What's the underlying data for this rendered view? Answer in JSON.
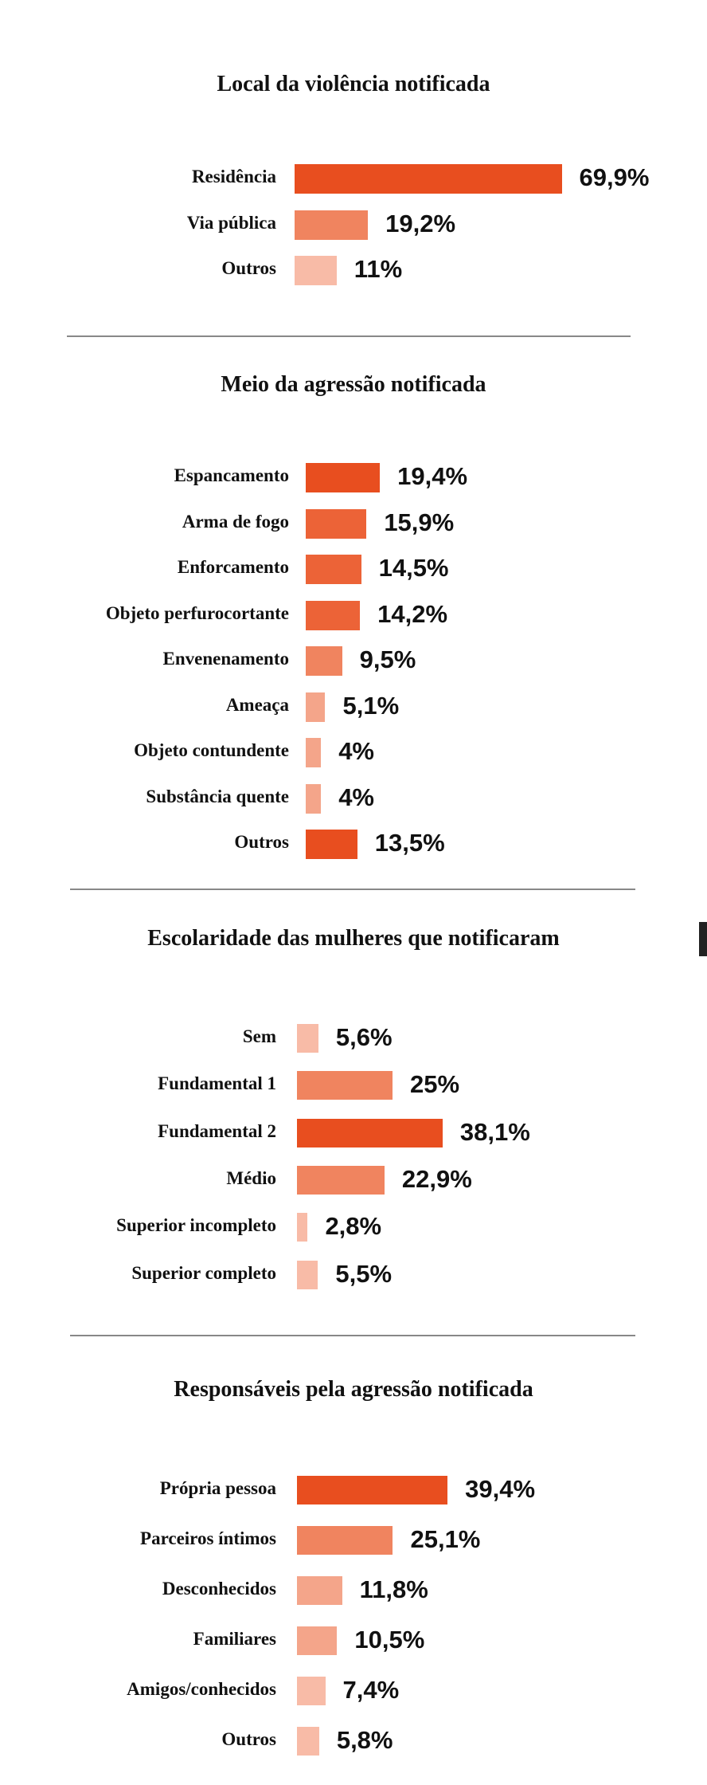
{
  "colors": {
    "dark": "#E84E1F",
    "strong": "#EC6337",
    "medium": "#F0845F",
    "light": "#F4A58A",
    "lightest": "#F8BBA7"
  },
  "chart_data": [
    {
      "type": "bar",
      "orientation": "horizontal",
      "title": "Local da violência notificada",
      "unit": "%",
      "categories": [
        "Residência",
        "Via pública",
        "Outros"
      ],
      "values": [
        69.9,
        19.2,
        11
      ],
      "value_labels": [
        "69,9%",
        "19,2%",
        "11%"
      ],
      "bar_colors": [
        "dark",
        "medium",
        "lightest"
      ]
    },
    {
      "type": "bar",
      "orientation": "horizontal",
      "title": "Meio da agressão notificada",
      "unit": "%",
      "categories": [
        "Espancamento",
        "Arma de fogo",
        "Enforcamento",
        "Objeto perfurocortante",
        "Envenenamento",
        "Ameaça",
        "Objeto contundente",
        "Substância quente",
        "Outros"
      ],
      "values": [
        19.4,
        15.9,
        14.5,
        14.2,
        9.5,
        5.1,
        4,
        4,
        13.5
      ],
      "value_labels": [
        "19,4%",
        "15,9%",
        "14,5%",
        "14,2%",
        "9,5%",
        "5,1%",
        "4%",
        "4%",
        "13,5%"
      ],
      "bar_colors": [
        "dark",
        "strong",
        "strong",
        "strong",
        "medium",
        "light",
        "light",
        "light",
        "dark"
      ]
    },
    {
      "type": "bar",
      "orientation": "horizontal",
      "title": "Escolaridade das mulheres que notificaram",
      "unit": "%",
      "categories": [
        "Sem",
        "Fundamental 1",
        "Fundamental 2",
        "Médio",
        "Superior incompleto",
        "Superior completo"
      ],
      "values": [
        5.6,
        25,
        38.1,
        22.9,
        2.8,
        5.5
      ],
      "value_labels": [
        "5,6%",
        "25%",
        "38,1%",
        "22,9%",
        "2,8%",
        "5,5%"
      ],
      "bar_colors": [
        "lightest",
        "medium",
        "dark",
        "medium",
        "lightest",
        "lightest"
      ]
    },
    {
      "type": "bar",
      "orientation": "horizontal",
      "title": "Responsáveis pela agressão notificada",
      "unit": "%",
      "categories": [
        "Própria pessoa",
        "Parceiros íntimos",
        "Desconhecidos",
        "Familiares",
        "Amigos/conhecidos",
        "Outros"
      ],
      "values": [
        39.4,
        25.1,
        11.8,
        10.5,
        7.4,
        5.8
      ],
      "value_labels": [
        "39,4%",
        "25,1%",
        "11,8%",
        "10,5%",
        "7,4%",
        "5,8%"
      ],
      "bar_colors": [
        "dark",
        "medium",
        "light",
        "light",
        "lightest",
        "lightest"
      ]
    }
  ]
}
